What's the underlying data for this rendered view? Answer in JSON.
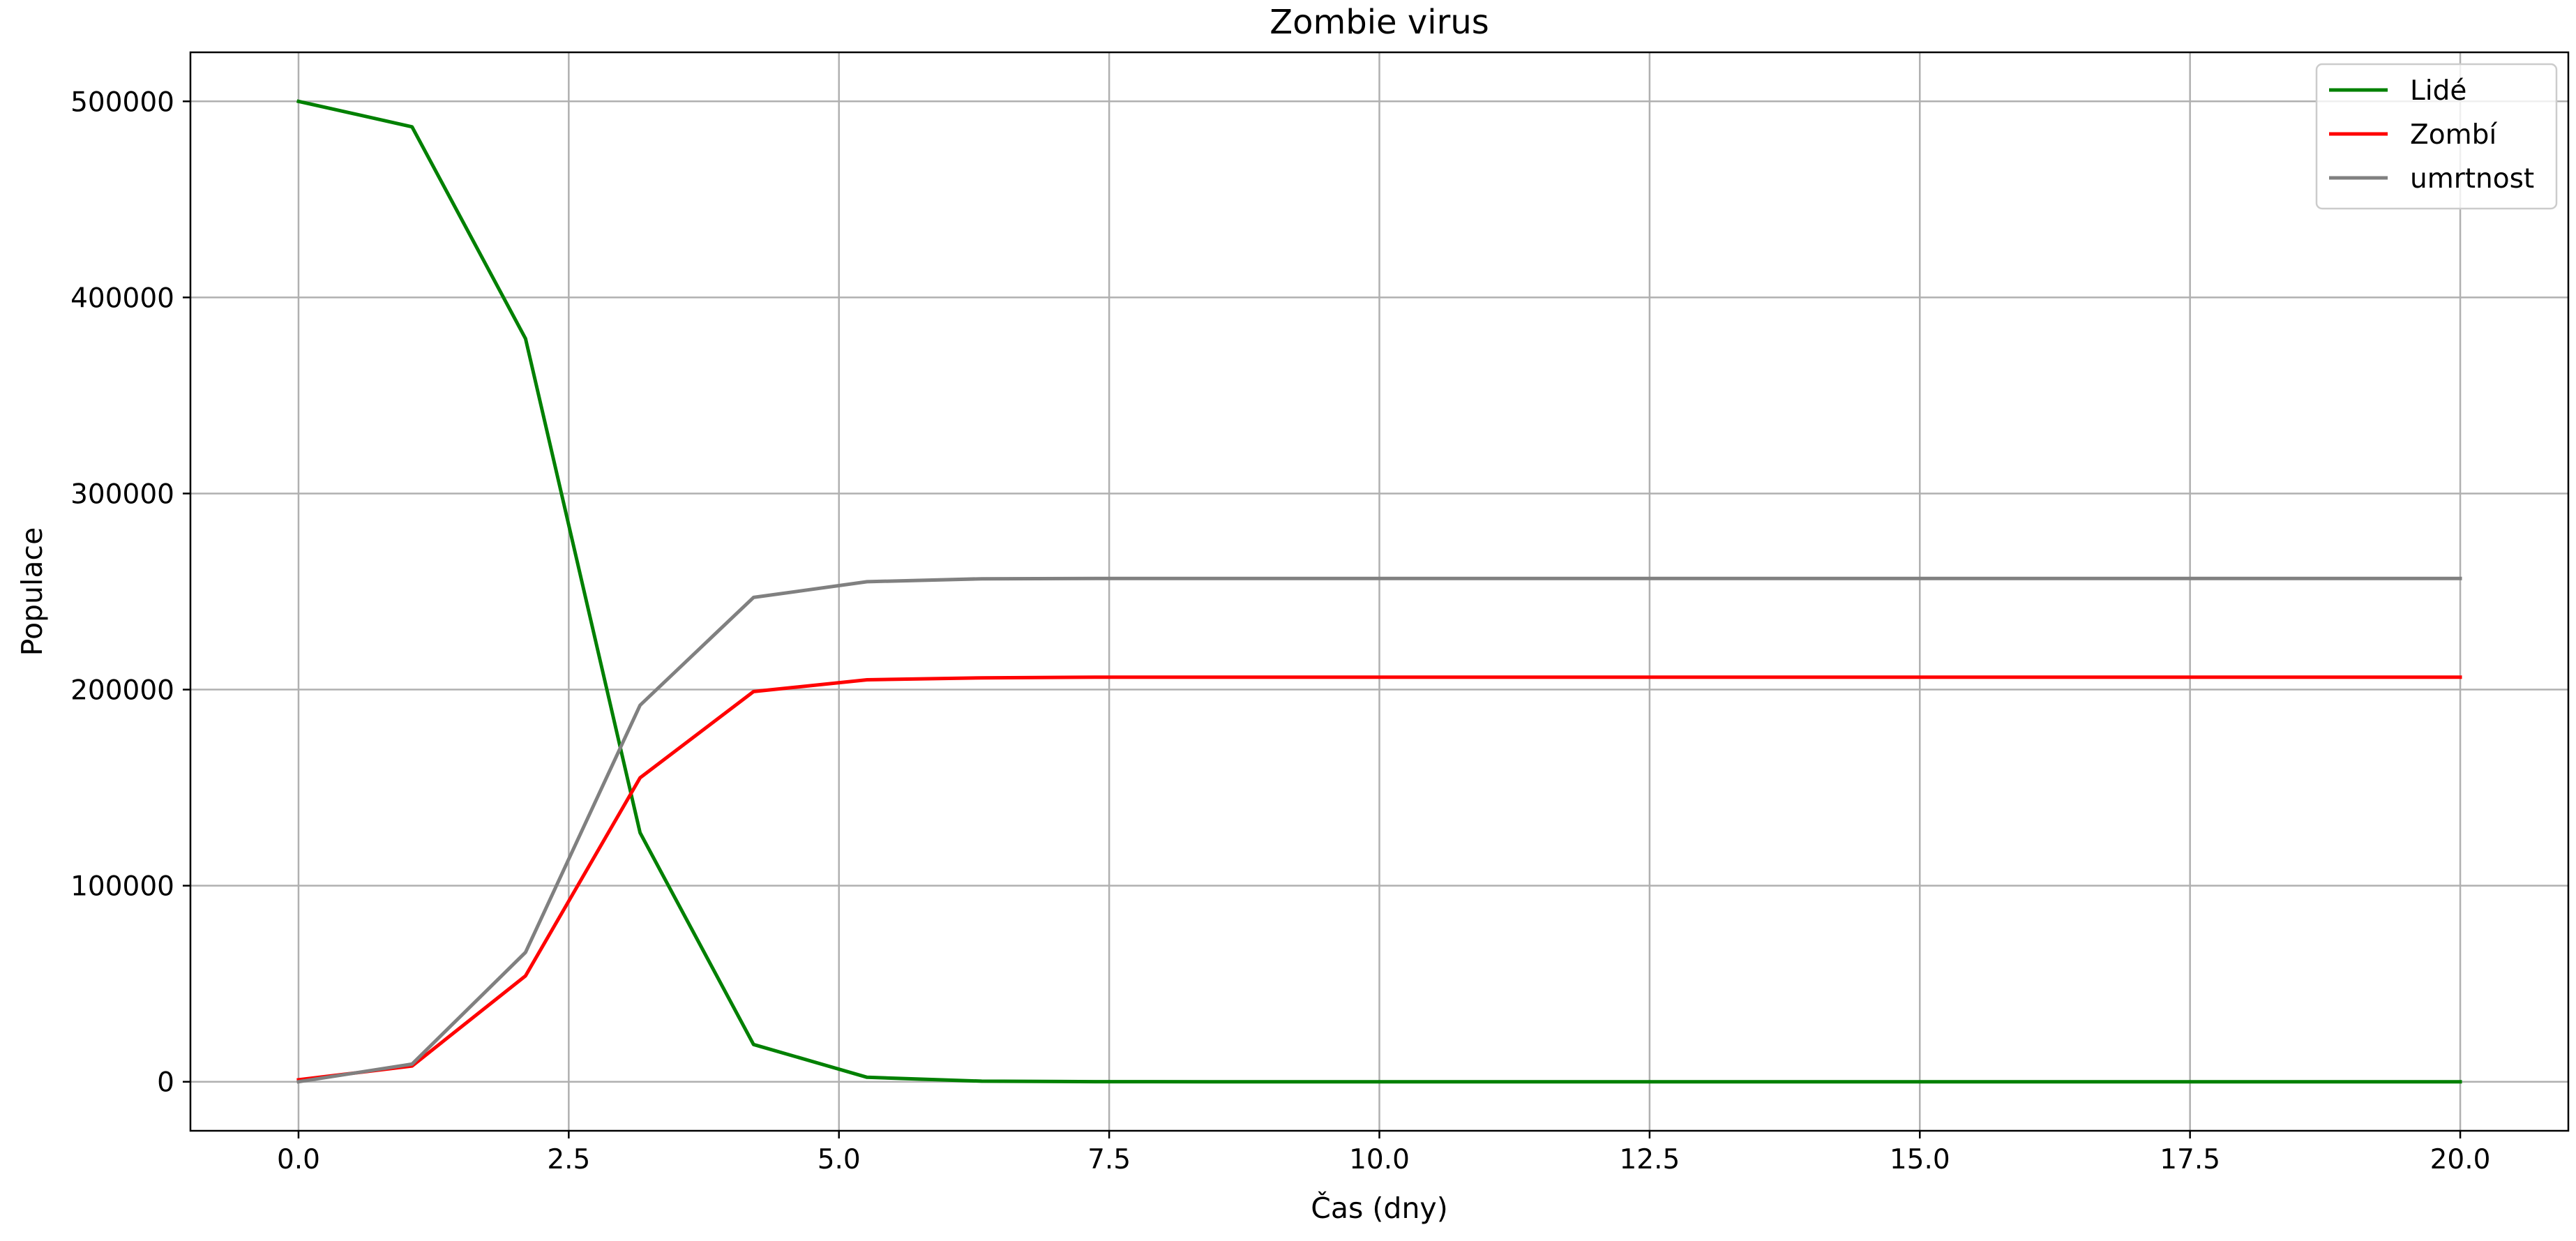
{
  "chart_data": {
    "type": "line",
    "title": "Zombie virus",
    "xlabel": "Čas (dny)",
    "ylabel": "Populace",
    "xlim": [
      -1.0,
      21.0
    ],
    "ylim": [
      -25000,
      525000
    ],
    "xticks": [
      0.0,
      2.5,
      5.0,
      7.5,
      10.0,
      12.5,
      15.0,
      17.5,
      20.0
    ],
    "xtick_labels": [
      "0.0",
      "2.5",
      "5.0",
      "7.5",
      "10.0",
      "12.5",
      "15.0",
      "17.5",
      "20.0"
    ],
    "yticks": [
      0,
      100000,
      200000,
      300000,
      400000,
      500000
    ],
    "ytick_labels": [
      "0",
      "100000",
      "200000",
      "300000",
      "400000",
      "500000"
    ],
    "grid": true,
    "legend_position": "top-right",
    "x": [
      0.0,
      1.05,
      2.1,
      3.16,
      4.21,
      5.26,
      6.32,
      7.37,
      8.42,
      9.47,
      10.53,
      11.58,
      12.63,
      13.68,
      14.74,
      15.79,
      16.84,
      17.89,
      18.95,
      20.0
    ],
    "series": [
      {
        "name": "Lidé",
        "color": "#008000",
        "values": [
          500000,
          487000,
          379000,
          127000,
          19000,
          2300,
          300,
          50,
          10,
          0,
          0,
          0,
          0,
          0,
          0,
          0,
          0,
          0,
          0,
          0
        ]
      },
      {
        "name": "Zombí",
        "color": "#ff0000",
        "values": [
          1000,
          8000,
          54000,
          155000,
          199000,
          205000,
          206000,
          206300,
          206300,
          206300,
          206300,
          206300,
          206300,
          206300,
          206300,
          206300,
          206300,
          206300,
          206300,
          206300
        ]
      },
      {
        "name": "umrtnost",
        "color": "#808080",
        "values": [
          0,
          9000,
          66000,
          192000,
          247000,
          255000,
          256500,
          256700,
          256700,
          256700,
          256700,
          256700,
          256700,
          256700,
          256700,
          256700,
          256700,
          256700,
          256700,
          256700
        ]
      }
    ]
  }
}
